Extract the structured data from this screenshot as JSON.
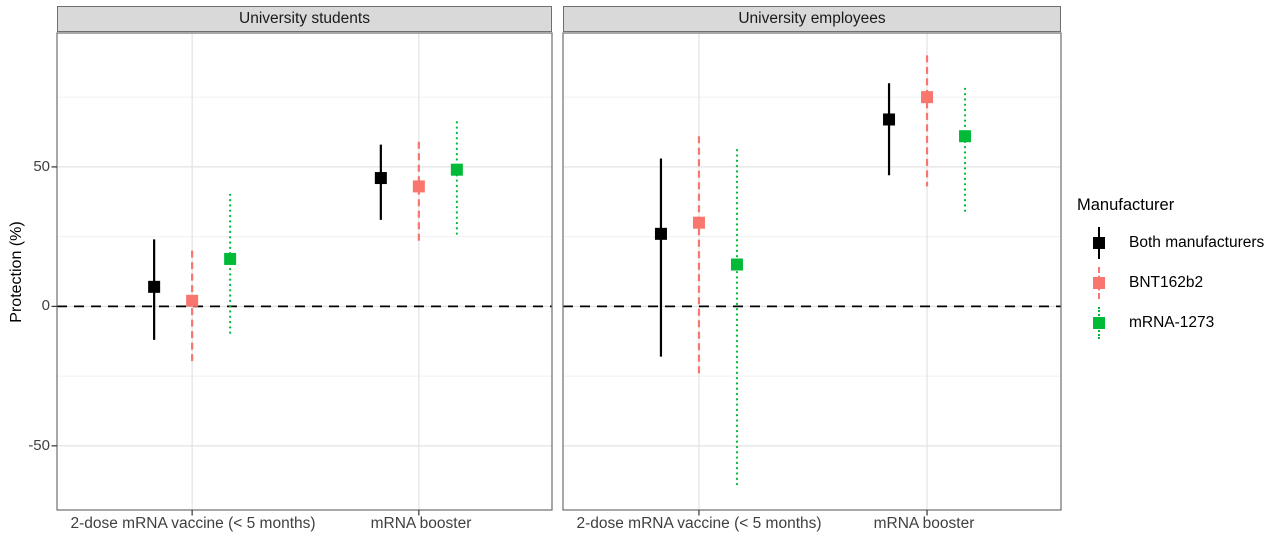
{
  "chart_data": {
    "type": "pointrange",
    "ylabel": "Protection (%)",
    "ylim": [
      -73,
      98
    ],
    "y_major_ticks": [
      50,
      0,
      -50
    ],
    "y_tick_labels": [
      "50",
      "0",
      "-50"
    ],
    "y_minor_gridlines": [
      75,
      25,
      -25
    ],
    "zero_line": 0,
    "categories": [
      "2-dose mRNA vaccine (< 5 months)",
      "mRNA booster"
    ],
    "legend": {
      "title": "Manufacturer",
      "entries": [
        {
          "label": "Both manufacturers"
        },
        {
          "label": "BNT162b2"
        },
        {
          "label": "mRNA-1273"
        }
      ]
    },
    "series_styles": [
      {
        "name": "Both manufacturers",
        "color": "#000000",
        "linetype": "solid"
      },
      {
        "name": "BNT162b2",
        "color": "#F8766D",
        "linetype": "dashed"
      },
      {
        "name": "mRNA-1273",
        "color": "#00BA38",
        "linetype": "dotted"
      }
    ],
    "panels": [
      {
        "label": "University students",
        "groups": [
          {
            "category": "2-dose mRNA vaccine (< 5 months)",
            "points": [
              {
                "series": "Both manufacturers",
                "est": 7,
                "lo": -12,
                "hi": 24
              },
              {
                "series": "BNT162b2",
                "est": 2,
                "lo": -21,
                "hi": 20
              },
              {
                "series": "mRNA-1273",
                "est": 17,
                "lo": -11,
                "hi": 40
              }
            ]
          },
          {
            "category": "mRNA booster",
            "points": [
              {
                "series": "Both manufacturers",
                "est": 46,
                "lo": 31,
                "hi": 58
              },
              {
                "series": "BNT162b2",
                "est": 43,
                "lo": 23,
                "hi": 59
              },
              {
                "series": "mRNA-1273",
                "est": 49,
                "lo": 26,
                "hi": 66
              }
            ]
          }
        ]
      },
      {
        "label": "University employees",
        "groups": [
          {
            "category": "2-dose mRNA vaccine (< 5 months)",
            "points": [
              {
                "series": "Both manufacturers",
                "est": 26,
                "lo": -18,
                "hi": 53
              },
              {
                "series": "BNT162b2",
                "est": 30,
                "lo": -25,
                "hi": 61
              },
              {
                "series": "mRNA-1273",
                "est": 15,
                "lo": -65,
                "hi": 56
              }
            ]
          },
          {
            "category": "mRNA booster",
            "points": [
              {
                "series": "Both manufacturers",
                "est": 67,
                "lo": 47,
                "hi": 80
              },
              {
                "series": "BNT162b2",
                "est": 75,
                "lo": 43,
                "hi": 90
              },
              {
                "series": "mRNA-1273",
                "est": 61,
                "lo": 33,
                "hi": 78
              }
            ]
          }
        ]
      }
    ]
  }
}
